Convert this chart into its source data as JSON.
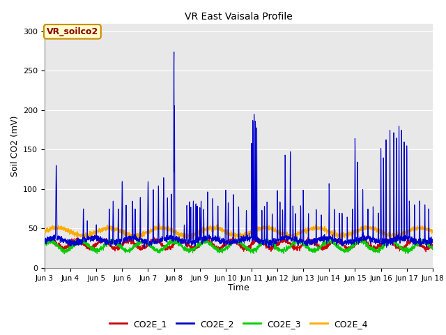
{
  "title": "VR East Vaisala Profile",
  "ylabel": "Soil CO2 (mV)",
  "xlabel": "Time",
  "legend_label": "VR_soilco2",
  "ylim": [
    0,
    310
  ],
  "series_names": [
    "CO2E_1",
    "CO2E_2",
    "CO2E_3",
    "CO2E_4"
  ],
  "series_colors": [
    "#cc0000",
    "#0000cc",
    "#00cc00",
    "#ffaa00"
  ],
  "x_tick_labels": [
    "Jun 3",
    "Jun 4",
    "Jun 5",
    "Jun 6",
    "Jun 7",
    "Jun 8",
    "Jun 9",
    "Jun 10",
    "Jun 11",
    "Jun 12",
    "Jun 13",
    "Jun 14",
    "Jun 15",
    "Jun 16",
    "Jun 17",
    "Jun 18"
  ],
  "axes_facecolor": "#e8e8e8",
  "fig_facecolor": "#ffffff",
  "grid_color": "#ffffff",
  "yticks": [
    0,
    50,
    100,
    150,
    200,
    250,
    300
  ]
}
